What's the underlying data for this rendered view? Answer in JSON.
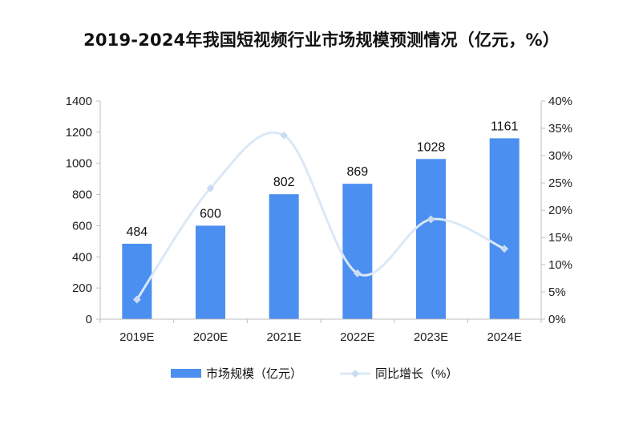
{
  "chart_data": {
    "type": "bar",
    "title": "2019-2024年我国短视频行业市场规模预测情况（亿元，%）",
    "categories": [
      "2019E",
      "2020E",
      "2021E",
      "2022E",
      "2023E",
      "2024E"
    ],
    "series": [
      {
        "name": "市场规模（亿元）",
        "type": "bar",
        "axis": "left",
        "values": [
          484,
          600,
          802,
          869,
          1028,
          1161
        ]
      },
      {
        "name": "同比增长（%）",
        "type": "line",
        "axis": "right",
        "smooth": true,
        "values": [
          3.6,
          24.0,
          33.7,
          8.4,
          18.3,
          12.9
        ]
      }
    ],
    "ylim_left": [
      0,
      1400
    ],
    "yticks_left": [
      "0",
      "200",
      "400",
      "600",
      "800",
      "1000",
      "1200",
      "1400"
    ],
    "ylim_right": [
      0,
      40
    ],
    "yticks_right": [
      "0%",
      "5%",
      "10%",
      "15%",
      "20%",
      "25%",
      "30%",
      "35%",
      "40%"
    ],
    "legend_position": "bottom",
    "grid": false,
    "colors": {
      "bar": "#4b8ff0",
      "line": "#dbe8f7",
      "marker": "#c9dcf2",
      "axis": "#bfbfbf"
    }
  }
}
